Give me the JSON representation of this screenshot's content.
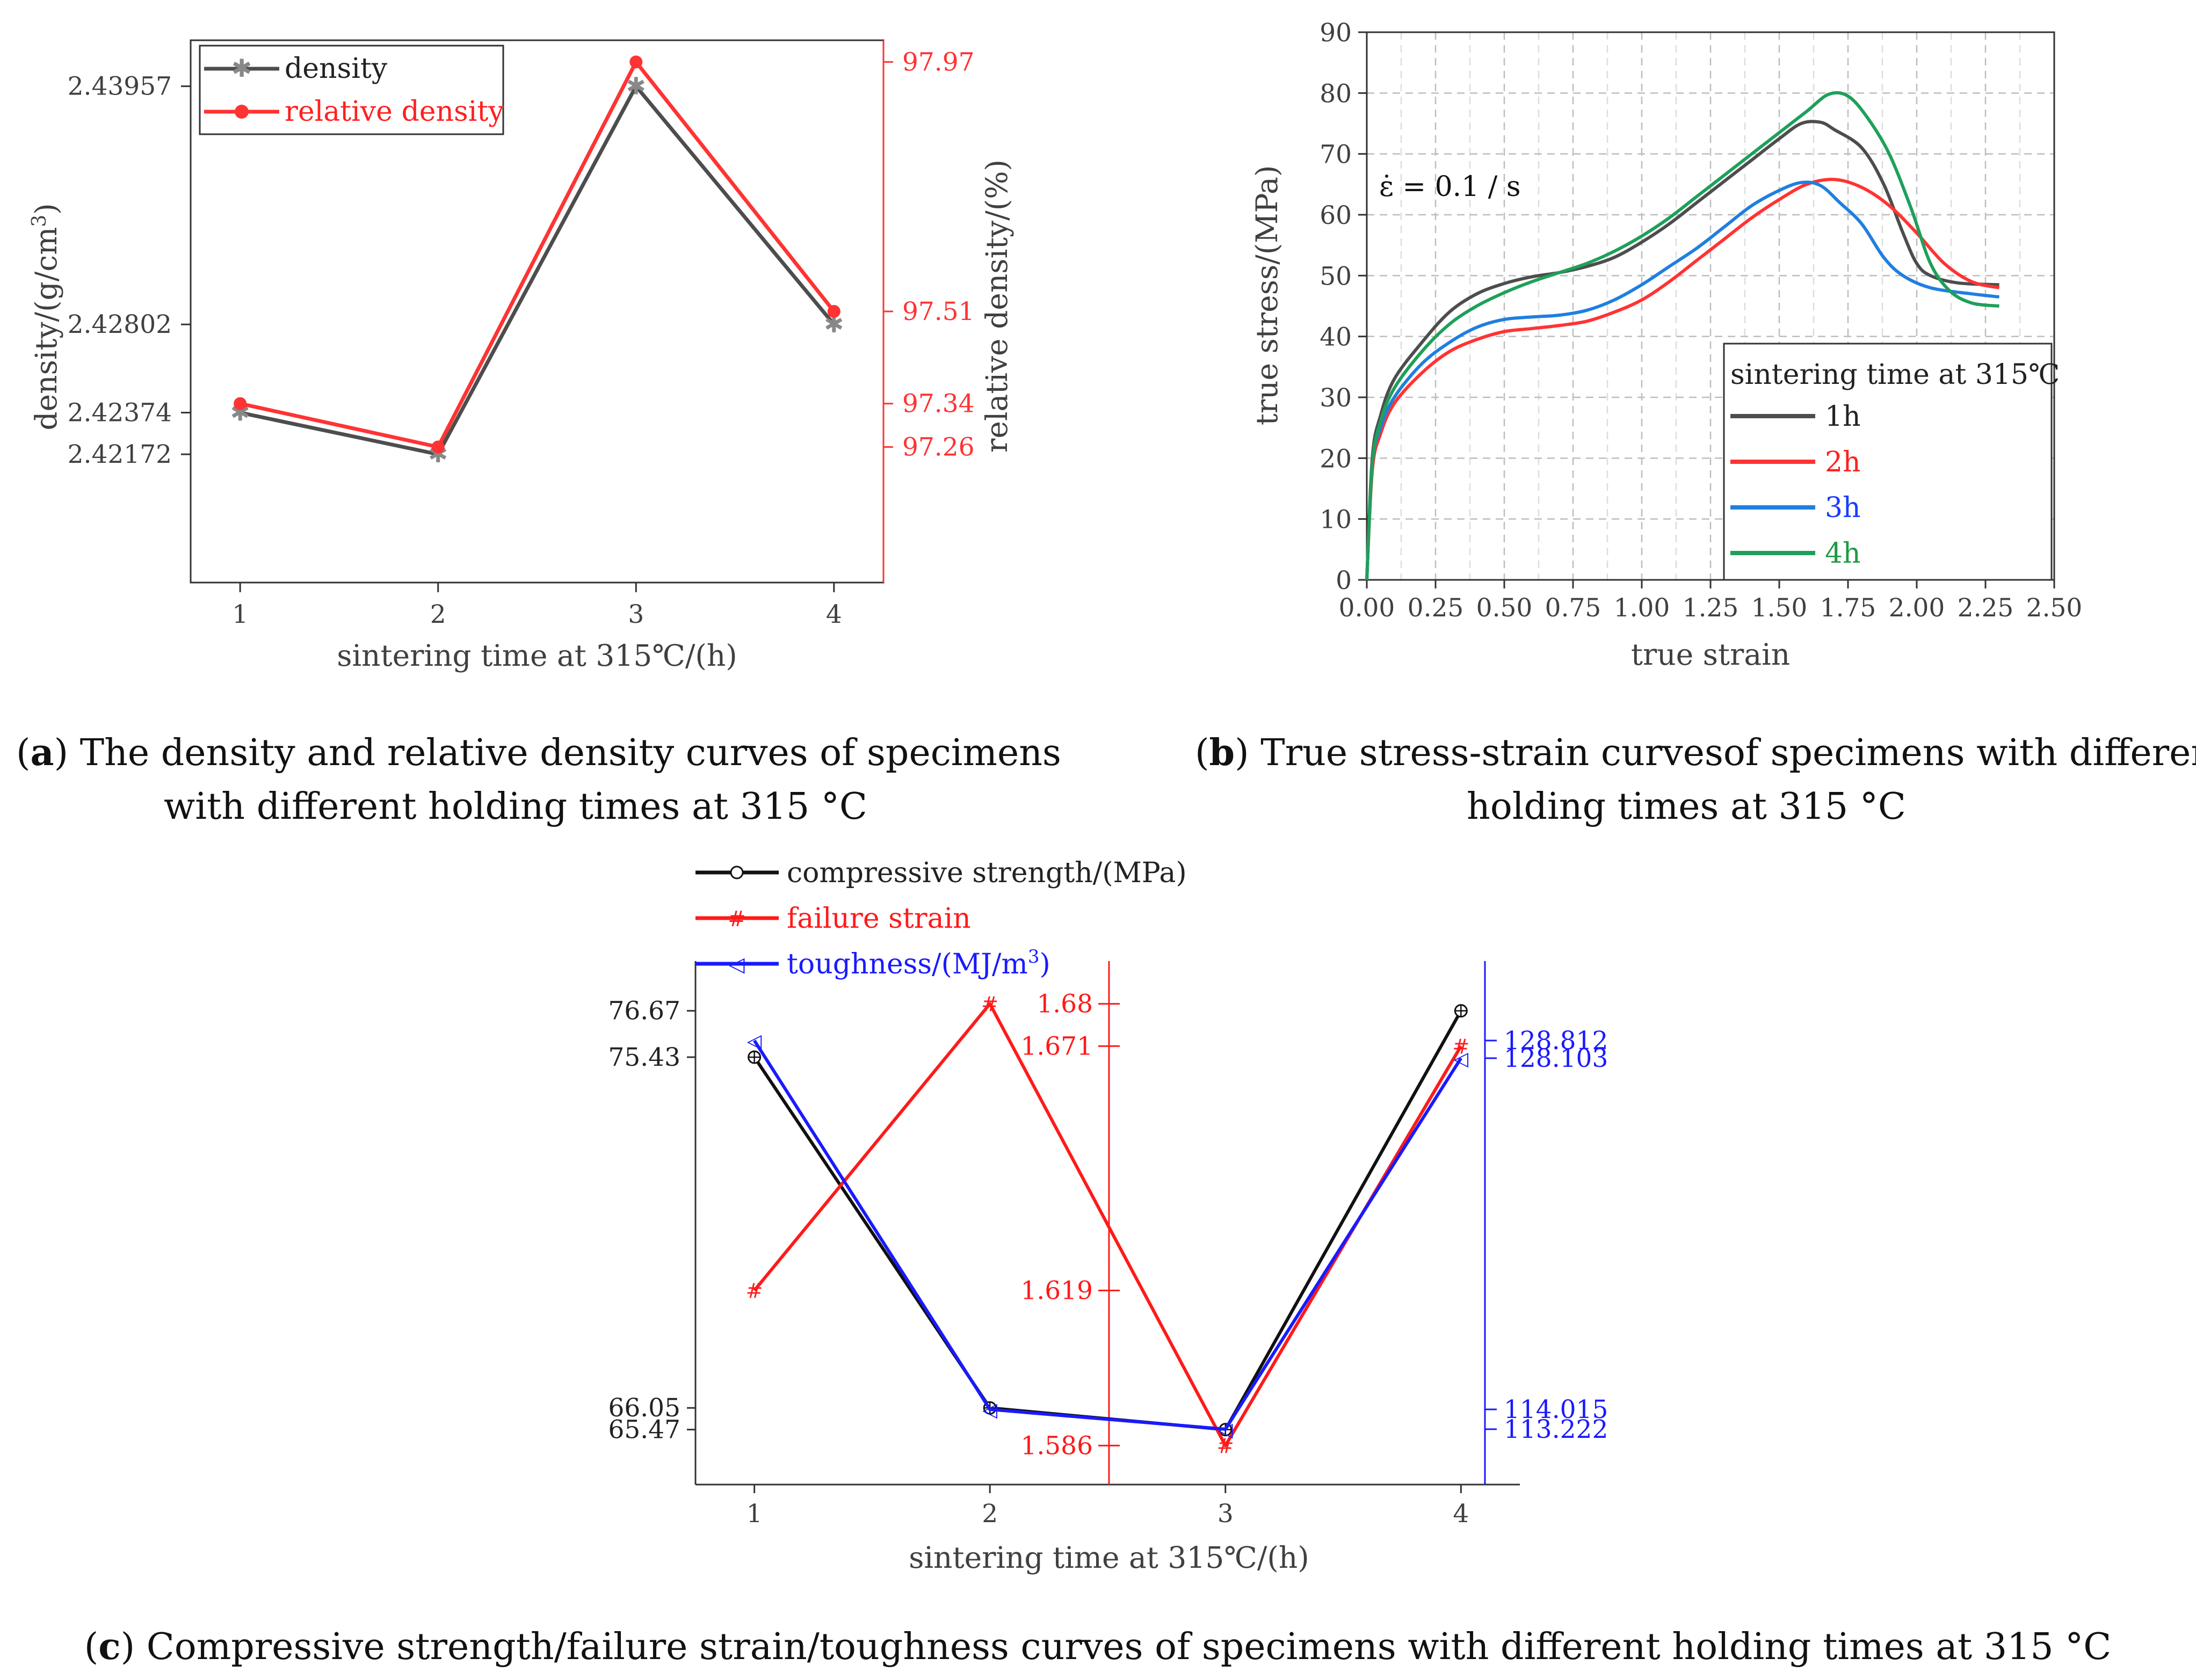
{
  "chart_data": [
    {
      "id": "a",
      "type": "line",
      "title": "",
      "xlabel": "sintering time at 315℃/(h)",
      "ylabel_left": "density/(g/cm",
      "ylabel_left_sup": "3",
      "ylabel_left_close": ")",
      "ylabel_right": "relative density/(%)",
      "x": [
        1,
        2,
        3,
        4
      ],
      "x_ticks": [
        "1",
        "2",
        "3",
        "4"
      ],
      "xlim": [
        0.75,
        4.25
      ],
      "ylim_left": [
        2.4155,
        2.4418
      ],
      "ylim_right": [
        97.01,
        98.01
      ],
      "y_ticks_left": [
        "2.43957",
        "2.42802",
        "2.42374",
        "2.42172"
      ],
      "y_ticks_right": [
        "97.97",
        "97.51",
        "97.34",
        "97.26"
      ],
      "series": [
        {
          "name": "density",
          "axis": "left",
          "color": "#4d4d4d",
          "marker": "asterisk",
          "values": [
            2.42374,
            2.42172,
            2.43957,
            2.42802
          ]
        },
        {
          "name": "relative density",
          "axis": "right",
          "color": "#ff3333",
          "marker": "circle",
          "values": [
            97.34,
            97.26,
            97.97,
            97.51
          ]
        }
      ],
      "caption_label": "a",
      "caption_text": ") The density and relative density curves of specimens",
      "caption_line2": "with different holding times at 315 °C"
    },
    {
      "id": "b",
      "type": "line",
      "xlabel": "true strain",
      "ylabel": "true stress/(MPa)",
      "xlim": [
        0,
        2.5
      ],
      "ylim": [
        0,
        90
      ],
      "x_ticks": [
        "0.00",
        "0.25",
        "0.50",
        "0.75",
        "1.00",
        "1.25",
        "1.50",
        "1.75",
        "2.00",
        "2.25",
        "2.50"
      ],
      "y_ticks": [
        "0",
        "10",
        "20",
        "30",
        "40",
        "50",
        "60",
        "70",
        "80",
        "90"
      ],
      "grid": true,
      "annotation": "ε̇ = 0.1 / s",
      "legend_title": "sintering time at 315℃",
      "legend_position": "bottom-right",
      "series": [
        {
          "name": "1h",
          "color": "#4d4d4d",
          "label_color": "#222222",
          "points": [
            [
              0,
              0
            ],
            [
              0.02,
              20
            ],
            [
              0.05,
              27
            ],
            [
              0.1,
              33
            ],
            [
              0.2,
              39
            ],
            [
              0.3,
              44
            ],
            [
              0.4,
              47
            ],
            [
              0.5,
              48.7
            ],
            [
              0.6,
              49.8
            ],
            [
              0.7,
              50.5
            ],
            [
              0.8,
              51.5
            ],
            [
              0.9,
              53
            ],
            [
              1.0,
              55.5
            ],
            [
              1.1,
              58.5
            ],
            [
              1.2,
              62
            ],
            [
              1.3,
              65.5
            ],
            [
              1.4,
              69
            ],
            [
              1.5,
              72.5
            ],
            [
              1.58,
              75
            ],
            [
              1.65,
              75.2
            ],
            [
              1.7,
              74
            ],
            [
              1.8,
              71
            ],
            [
              1.88,
              65
            ],
            [
              1.95,
              57
            ],
            [
              2.0,
              52
            ],
            [
              2.05,
              50
            ],
            [
              2.15,
              48.8
            ],
            [
              2.3,
              48.5
            ]
          ]
        },
        {
          "name": "2h",
          "color": "#ff3333",
          "label_color": "#ff2020",
          "points": [
            [
              0,
              0
            ],
            [
              0.02,
              18
            ],
            [
              0.05,
              24
            ],
            [
              0.1,
              29
            ],
            [
              0.2,
              34
            ],
            [
              0.3,
              37.5
            ],
            [
              0.4,
              39.5
            ],
            [
              0.5,
              40.8
            ],
            [
              0.6,
              41.3
            ],
            [
              0.7,
              41.8
            ],
            [
              0.8,
              42.5
            ],
            [
              0.9,
              44
            ],
            [
              1.0,
              46
            ],
            [
              1.1,
              49
            ],
            [
              1.2,
              52.5
            ],
            [
              1.3,
              56
            ],
            [
              1.4,
              59.5
            ],
            [
              1.5,
              62.5
            ],
            [
              1.6,
              65
            ],
            [
              1.7,
              65.8
            ],
            [
              1.8,
              64.5
            ],
            [
              1.9,
              61.5
            ],
            [
              2.0,
              57
            ],
            [
              2.1,
              52
            ],
            [
              2.2,
              49
            ],
            [
              2.3,
              48
            ]
          ]
        },
        {
          "name": "3h",
          "color": "#1f7fe0",
          "label_color": "#1a3cff",
          "points": [
            [
              0,
              0
            ],
            [
              0.02,
              19
            ],
            [
              0.05,
              25
            ],
            [
              0.1,
              30
            ],
            [
              0.2,
              35.5
            ],
            [
              0.3,
              39
            ],
            [
              0.4,
              41.5
            ],
            [
              0.5,
              42.8
            ],
            [
              0.6,
              43.2
            ],
            [
              0.7,
              43.5
            ],
            [
              0.8,
              44.3
            ],
            [
              0.9,
              46
            ],
            [
              1.0,
              48.5
            ],
            [
              1.1,
              51.5
            ],
            [
              1.2,
              54.5
            ],
            [
              1.3,
              58
            ],
            [
              1.4,
              61.5
            ],
            [
              1.5,
              64
            ],
            [
              1.58,
              65.3
            ],
            [
              1.65,
              64.8
            ],
            [
              1.72,
              62
            ],
            [
              1.8,
              58.5
            ],
            [
              1.88,
              53
            ],
            [
              1.95,
              50
            ],
            [
              2.05,
              48
            ],
            [
              2.2,
              47
            ],
            [
              2.3,
              46.5
            ]
          ]
        },
        {
          "name": "4h",
          "color": "#1ea05a",
          "label_color": "#1e9a45",
          "points": [
            [
              0,
              0
            ],
            [
              0.02,
              19
            ],
            [
              0.05,
              26
            ],
            [
              0.1,
              31.5
            ],
            [
              0.2,
              37.5
            ],
            [
              0.3,
              42
            ],
            [
              0.4,
              45
            ],
            [
              0.5,
              47.2
            ],
            [
              0.6,
              49
            ],
            [
              0.7,
              50.5
            ],
            [
              0.8,
              52
            ],
            [
              0.9,
              54
            ],
            [
              1.0,
              56.5
            ],
            [
              1.1,
              59.5
            ],
            [
              1.2,
              63
            ],
            [
              1.3,
              66.5
            ],
            [
              1.4,
              70
            ],
            [
              1.5,
              73.5
            ],
            [
              1.6,
              77
            ],
            [
              1.68,
              79.8
            ],
            [
              1.75,
              79.5
            ],
            [
              1.82,
              76
            ],
            [
              1.9,
              70
            ],
            [
              1.98,
              61
            ],
            [
              2.05,
              52
            ],
            [
              2.12,
              47.5
            ],
            [
              2.2,
              45.5
            ],
            [
              2.3,
              45
            ]
          ]
        }
      ],
      "caption_label": "b",
      "caption_text": ") True stress-strain curvesof specimens with different",
      "caption_line2": "holding times at 315 °C"
    },
    {
      "id": "c",
      "type": "line",
      "xlabel": "sintering time at 315℃/(h)",
      "x": [
        1,
        2,
        3,
        4
      ],
      "x_ticks": [
        "1",
        "2",
        "3",
        "4"
      ],
      "xlim": [
        0.75,
        4.25
      ],
      "ylim_left": [
        64.0,
        78.0
      ],
      "ylim_mid": [
        1.5777,
        1.6891
      ],
      "ylim_right": [
        111.0,
        132.0
      ],
      "y_ticks_left": [
        "76.67",
        "75.43",
        "66.05",
        "65.47"
      ],
      "y_ticks_mid": [
        "1.68",
        "1.671",
        "1.619",
        "1.586"
      ],
      "y_ticks_right": [
        "128.812",
        "128.103",
        "114.015",
        "113.222"
      ],
      "series": [
        {
          "name": "compressive strength/(MPa)",
          "axis": "left",
          "color": "#111111",
          "marker": "circle-plus",
          "values": [
            75.43,
            66.05,
            65.47,
            76.67
          ]
        },
        {
          "name": "failure strain",
          "axis": "mid",
          "color": "#ff1a1a",
          "marker": "hash",
          "values": [
            1.619,
            1.68,
            1.586,
            1.671
          ]
        },
        {
          "name": "toughness/(MJ/m",
          "name_sup": "3",
          "name_close": ")",
          "axis": "right",
          "color": "#1a1aff",
          "marker": "triangle",
          "values": [
            128.812,
            114.015,
            113.222,
            128.103
          ]
        }
      ],
      "caption_label": "c",
      "caption_text": ") Compressive strength/failure strain/toughness curves of specimens with different holding times at 315 °C"
    }
  ]
}
